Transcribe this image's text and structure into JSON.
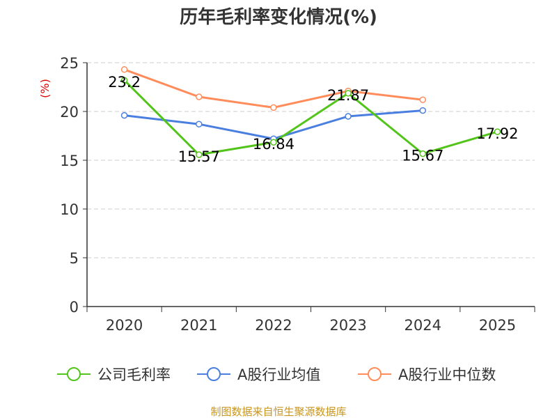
{
  "chart_data": {
    "type": "line",
    "title": "历年毛利率变化情况(%)",
    "ylabel": "(%)",
    "categories": [
      "2020",
      "2021",
      "2022",
      "2023",
      "2024",
      "2025"
    ],
    "ylim": [
      0,
      25
    ],
    "yticks": [
      0,
      5,
      10,
      15,
      20,
      25
    ],
    "grid": true,
    "legend_position": "bottom",
    "series": [
      {
        "name": "公司毛利率",
        "color": "#52c41a",
        "values": [
          23.2,
          15.57,
          16.84,
          21.87,
          15.67,
          17.92
        ],
        "labels": [
          "23.2",
          "15.57",
          "16.84",
          "21.87",
          "15.67",
          "17.92"
        ]
      },
      {
        "name": "A股行业均值",
        "color": "#4a7fe0",
        "values": [
          19.6,
          18.7,
          17.2,
          19.5,
          20.1,
          null
        ]
      },
      {
        "name": "A股行业中位数",
        "color": "#ff8c5a",
        "values": [
          24.3,
          21.5,
          20.4,
          22.1,
          21.2,
          null
        ]
      }
    ]
  },
  "source": "制图数据来自恒生聚源数据库",
  "colors": {
    "title": "#333333",
    "ylabel": "#e00000",
    "source": "#c8961e"
  }
}
